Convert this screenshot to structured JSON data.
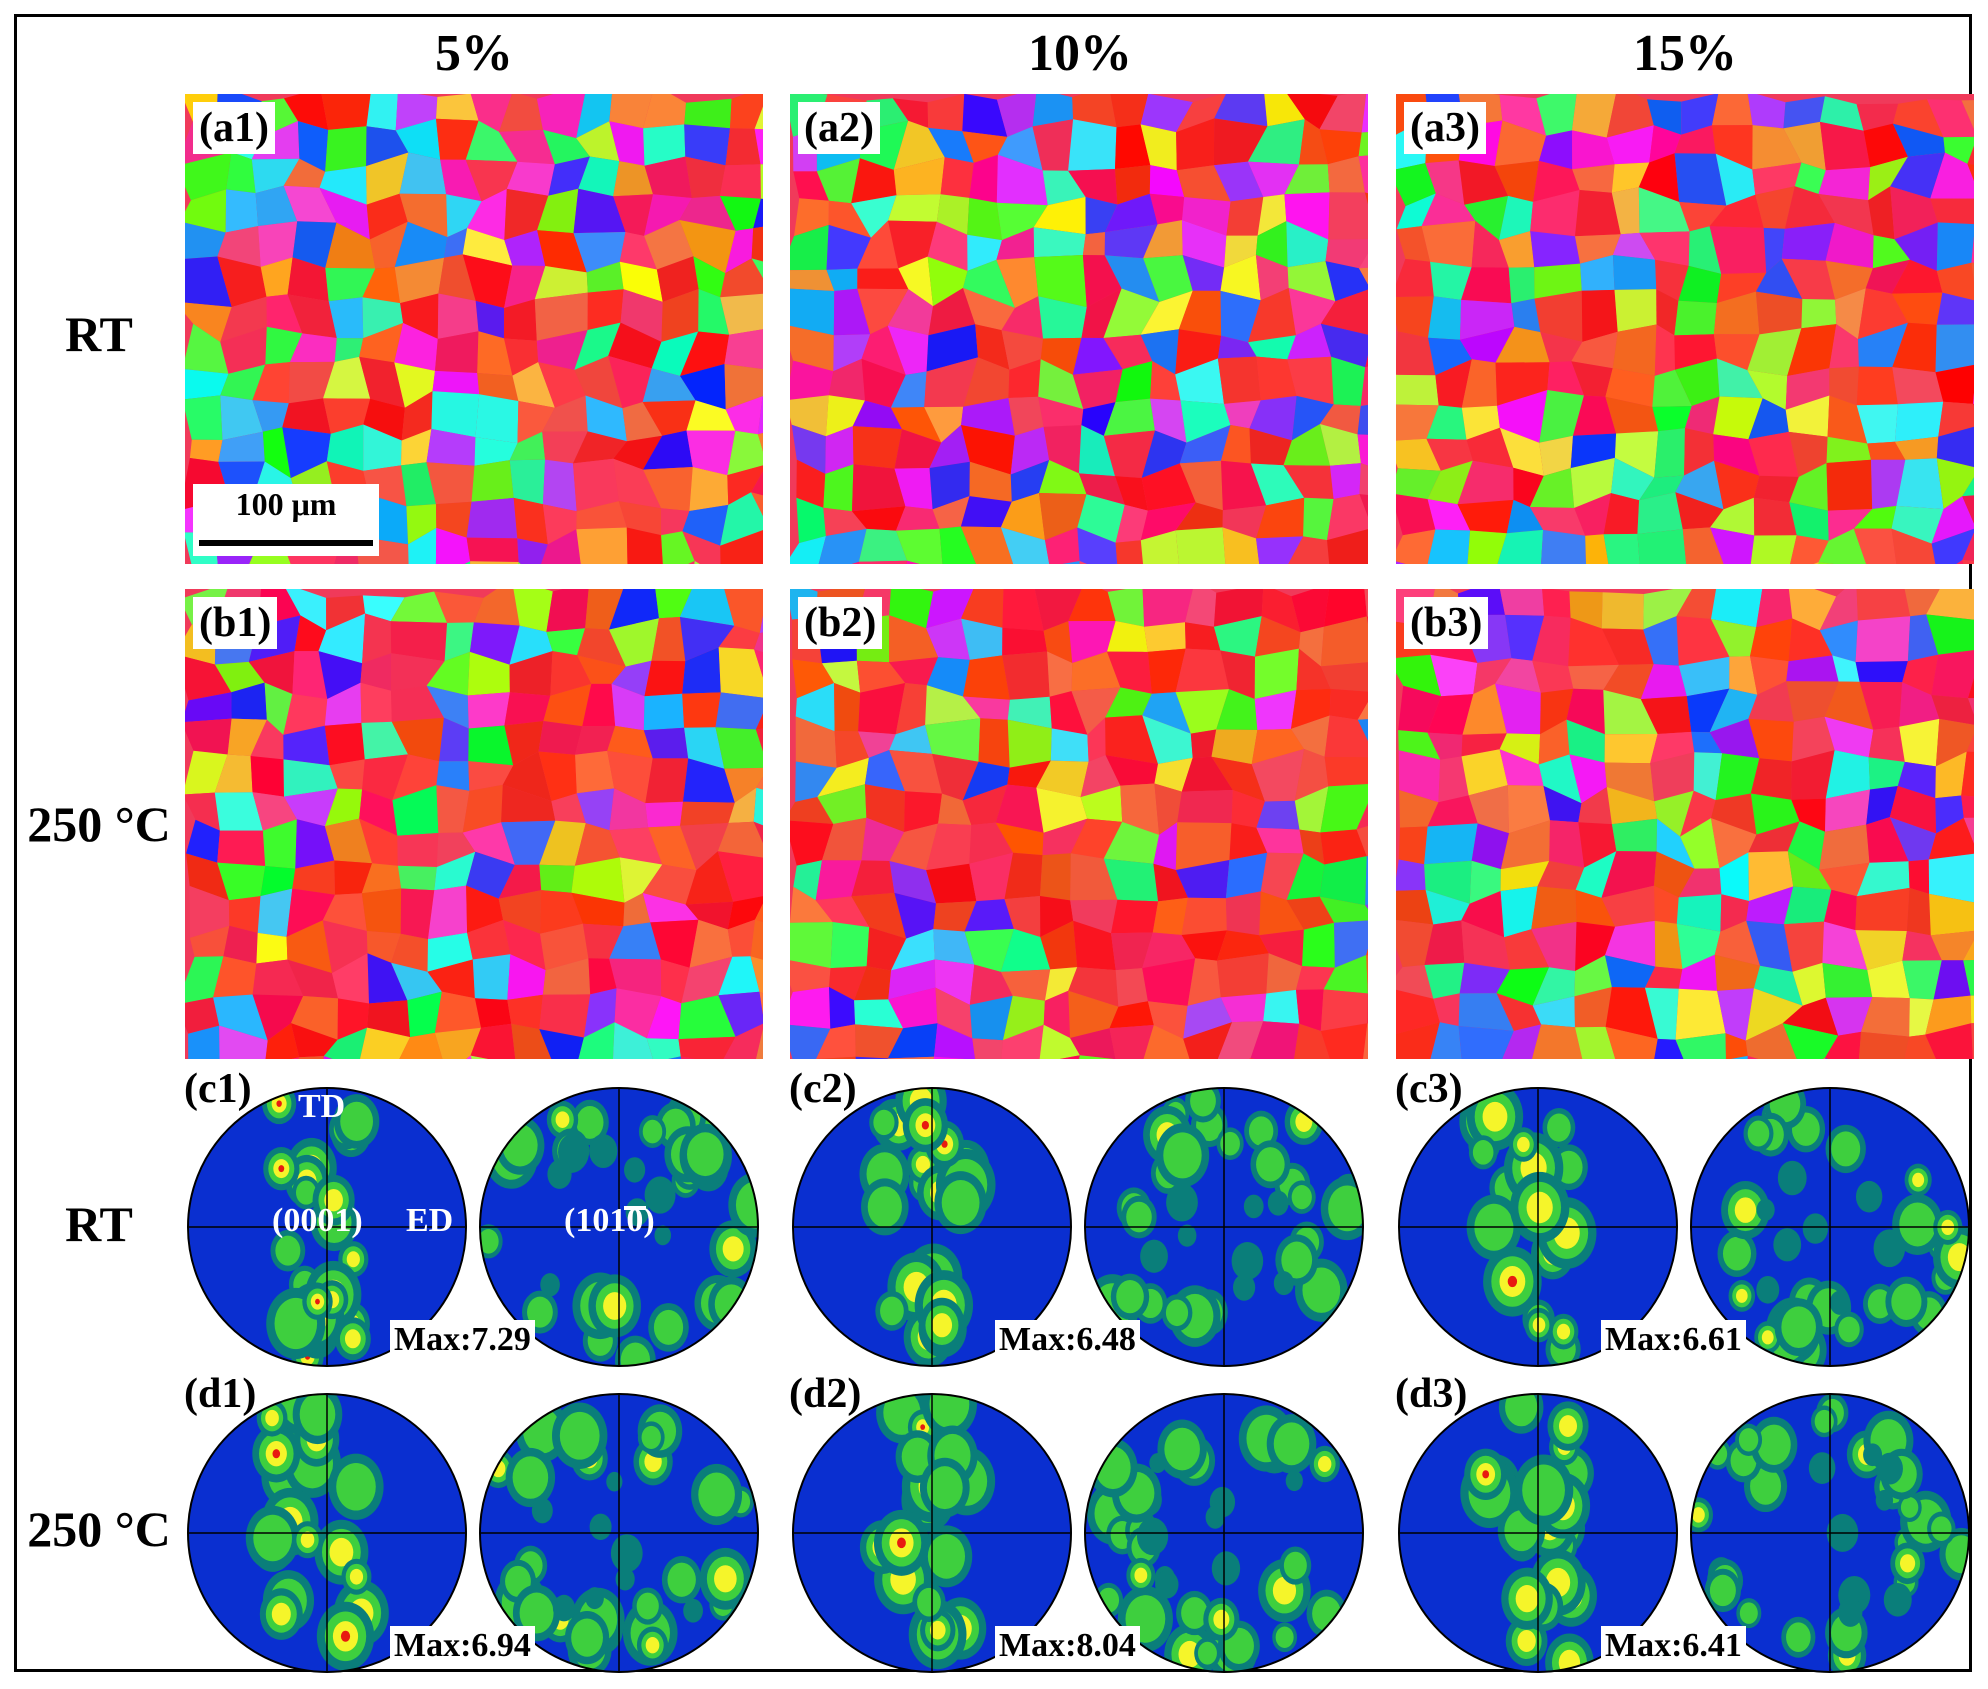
{
  "columns": [
    "5%",
    "10%",
    "15%"
  ],
  "rows": {
    "a": "RT",
    "b": "250 °C",
    "c": "RT",
    "d": "250 °C"
  },
  "maps": {
    "a": [
      "(a1)",
      "(a2)",
      "(a3)"
    ],
    "b": [
      "(b1)",
      "(b2)",
      "(b3)"
    ]
  },
  "scale_bar": "100 μm",
  "pole_figures": {
    "c": [
      {
        "label": "(c1)",
        "max": "Max:7.29"
      },
      {
        "label": "(c2)",
        "max": "Max:6.48"
      },
      {
        "label": "(c3)",
        "max": "Max:6.61"
      }
    ],
    "d": [
      {
        "label": "(d1)",
        "max": "Max:6.94"
      },
      {
        "label": "(d2)",
        "max": "Max:8.04"
      },
      {
        "label": "(d3)",
        "max": "Max:6.41"
      }
    ]
  },
  "annotations": {
    "td": "TD",
    "ed": "ED",
    "basal": "(0001)",
    "prism": "(1010)"
  },
  "colors": {
    "pole_background": "#0a2fd0",
    "pole_low": "#0a7e7a",
    "pole_mid": "#3ecf3e",
    "pole_high": "#f5f52a",
    "pole_peak": "#e81a10"
  }
}
